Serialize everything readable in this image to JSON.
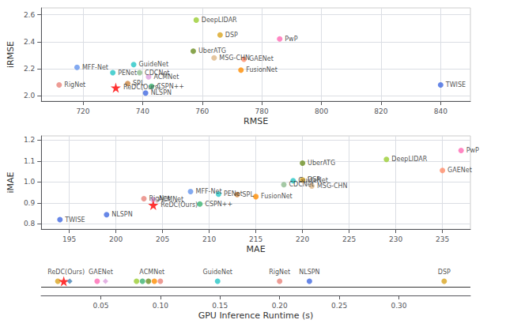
{
  "chart_data": [
    {
      "type": "scatter",
      "xlabel": "RMSE",
      "ylabel": "iRMSE",
      "xlim": [
        706,
        850
      ],
      "ylim": [
        1.96,
        2.65
      ],
      "xticks": [
        720,
        740,
        760,
        780,
        800,
        820,
        840
      ],
      "yticks": [
        {
          "value": 2.0,
          "label": "2.0"
        },
        2.2,
        2.4,
        2.6
      ],
      "grid": true,
      "points": [
        {
          "label": "RigNet",
          "x": 712,
          "y": 2.08,
          "color": "#E8837A",
          "marker": "circle"
        },
        {
          "label": "MFF-Net",
          "x": 718,
          "y": 2.21,
          "color": "#6495ED",
          "marker": "circle"
        },
        {
          "label": "PENet",
          "x": 730,
          "y": 2.17,
          "color": "#26C6C6",
          "marker": "circle"
        },
        {
          "label": "GuideNet",
          "x": 737,
          "y": 2.23,
          "color": "#26C6C6",
          "marker": "circle"
        },
        {
          "label": "CDCNet",
          "x": 739,
          "y": 2.17,
          "color": "#8FBC8F",
          "marker": "circle"
        },
        {
          "label": "ACMNet",
          "x": 742,
          "y": 2.14,
          "color": "#DDA0DD",
          "marker": "circle"
        },
        {
          "label": "SPL",
          "x": 735,
          "y": 2.09,
          "color": "#CD853F",
          "marker": "circle"
        },
        {
          "label": "CSPN++",
          "x": 743,
          "y": 2.07,
          "color": "#3CB371",
          "marker": "circle"
        },
        {
          "label": "NLSPN",
          "x": 741,
          "y": 2.02,
          "color": "#4169E1",
          "marker": "circle"
        },
        {
          "label": "UberATG",
          "x": 757,
          "y": 2.33,
          "color": "#6B8E23",
          "marker": "circle"
        },
        {
          "label": "DeepLIDAR",
          "x": 758,
          "y": 2.56,
          "color": "#9ACD32",
          "marker": "circle"
        },
        {
          "label": "MSG-CHN",
          "x": 764,
          "y": 2.28,
          "color": "#DEB887",
          "marker": "circle"
        },
        {
          "label": "DSP",
          "x": 766,
          "y": 2.45,
          "color": "#DAA520",
          "marker": "circle"
        },
        {
          "label": "GAENet",
          "x": 774,
          "y": 2.27,
          "color": "#FF8C69",
          "marker": "circle"
        },
        {
          "label": "FusionNet",
          "x": 773,
          "y": 2.19,
          "color": "#FF8C00",
          "marker": "circle"
        },
        {
          "label": "PwP",
          "x": 786,
          "y": 2.42,
          "color": "#FF69B4",
          "marker": "circle"
        },
        {
          "label": "TWISE",
          "x": 840,
          "y": 2.08,
          "color": "#4169E1",
          "marker": "circle"
        },
        {
          "label": "ReDC(Ours)",
          "x": 731,
          "y": 2.06,
          "color": "#FF0000",
          "marker": "star"
        }
      ]
    },
    {
      "type": "scatter",
      "xlabel": "MAE",
      "ylabel": "iMAE",
      "xlim": [
        192,
        238
      ],
      "ylim": [
        0.775,
        1.22
      ],
      "xticks": [
        195,
        200,
        205,
        210,
        215,
        220,
        225,
        230,
        235
      ],
      "yticks": [
        0.8,
        0.9,
        {
          "value": 1.0,
          "label": "1.0"
        },
        1.1,
        1.2
      ],
      "grid": true,
      "points": [
        {
          "label": "TWISE",
          "x": 194,
          "y": 0.82,
          "color": "#4169E1",
          "marker": "circle"
        },
        {
          "label": "NLSPN",
          "x": 199,
          "y": 0.844,
          "color": "#4169E1",
          "marker": "circle"
        },
        {
          "label": "RigNet",
          "x": 203,
          "y": 0.92,
          "color": "#E8837A",
          "marker": "circle"
        },
        {
          "label": "ACMNet",
          "x": 204,
          "y": 0.915,
          "color": "#DDA0DD",
          "marker": "circle"
        },
        {
          "label": "MFF-Net",
          "x": 208,
          "y": 0.954,
          "color": "#6495ED",
          "marker": "circle"
        },
        {
          "label": "PENet",
          "x": 211,
          "y": 0.942,
          "color": "#26C6C6",
          "marker": "circle"
        },
        {
          "label": "CSPN++",
          "x": 209,
          "y": 0.895,
          "color": "#3CB371",
          "marker": "circle"
        },
        {
          "label": "SPL",
          "x": 213,
          "y": 0.94,
          "color": "#CD853F",
          "marker": "circle"
        },
        {
          "label": "FusionNet",
          "x": 215,
          "y": 0.93,
          "color": "#FF8C00",
          "marker": "circle"
        },
        {
          "label": "CDCNet",
          "x": 218,
          "y": 0.987,
          "color": "#8FBC8F",
          "marker": "circle"
        },
        {
          "label": "GuideNet",
          "x": 219,
          "y": 1.006,
          "color": "#26C6C6",
          "marker": "circle"
        },
        {
          "label": "DSP",
          "x": 220,
          "y": 1.01,
          "color": "#DAA520",
          "marker": "circle"
        },
        {
          "label": "MSG-CHN",
          "x": 221,
          "y": 0.981,
          "color": "#DEB887",
          "marker": "circle"
        },
        {
          "label": "UberATG",
          "x": 220,
          "y": 1.09,
          "color": "#6B8E23",
          "marker": "circle"
        },
        {
          "label": "DeepLIDAR",
          "x": 229,
          "y": 1.108,
          "color": "#9ACD32",
          "marker": "circle"
        },
        {
          "label": "GAENet",
          "x": 235,
          "y": 1.055,
          "color": "#FF8C69",
          "marker": "circle"
        },
        {
          "label": "PwP",
          "x": 237,
          "y": 1.15,
          "color": "#FF69B4",
          "marker": "circle"
        },
        {
          "label": "ReDC(Ours)",
          "x": 204,
          "y": 0.89,
          "color": "#FF0000",
          "marker": "star"
        }
      ]
    },
    {
      "type": "strip",
      "xlabel": "GPU Inference Runtime (s)",
      "xlim": [
        0.0,
        0.36
      ],
      "xticks": [
        0.05,
        {
          "value": 0.1,
          "label": "0.10"
        },
        0.15,
        {
          "value": 0.2,
          "label": "0.20"
        },
        0.25,
        {
          "value": 0.3,
          "label": "0.30"
        }
      ],
      "grid": false,
      "groups": [
        {
          "label": "ReDC(Ours)",
          "label_x": 0.021,
          "dots": [
            {
              "x": 0.014,
              "color": "#DAA520",
              "marker": "circle"
            },
            {
              "x": 0.019,
              "color": "#FF0000",
              "marker": "star"
            },
            {
              "x": 0.024,
              "color": "#4682B4",
              "marker": "diamond"
            }
          ]
        },
        {
          "label": "GAENet",
          "label_x": 0.05,
          "dots": [
            {
              "x": 0.047,
              "color": "#FF69B4",
              "marker": "circle"
            },
            {
              "x": 0.054,
              "color": "#DDA0DD",
              "marker": "diamond"
            }
          ]
        },
        {
          "label": "ACMNet",
          "label_x": 0.093,
          "dots": [
            {
              "x": 0.08,
              "color": "#9ACD32",
              "marker": "circle"
            },
            {
              "x": 0.085,
              "color": "#3CB371",
              "marker": "circle"
            },
            {
              "x": 0.09,
              "color": "#6B8E23",
              "marker": "circle"
            },
            {
              "x": 0.095,
              "color": "#FF8C00",
              "marker": "circle"
            },
            {
              "x": 0.1,
              "color": "#E8837A",
              "marker": "circle"
            }
          ]
        },
        {
          "label": "GuideNet",
          "label_x": 0.148,
          "dots": [
            {
              "x": 0.148,
              "color": "#26C6C6",
              "marker": "circle"
            }
          ]
        },
        {
          "label": "RigNet",
          "label_x": 0.2,
          "dots": [
            {
              "x": 0.2,
              "color": "#E8837A",
              "marker": "circle"
            }
          ]
        },
        {
          "label": "NLSPN",
          "label_x": 0.225,
          "dots": [
            {
              "x": 0.225,
              "color": "#4169E1",
              "marker": "circle"
            }
          ]
        },
        {
          "label": "DSP",
          "label_x": 0.338,
          "dots": [
            {
              "x": 0.338,
              "color": "#DAA520",
              "marker": "circle"
            }
          ]
        }
      ]
    }
  ]
}
